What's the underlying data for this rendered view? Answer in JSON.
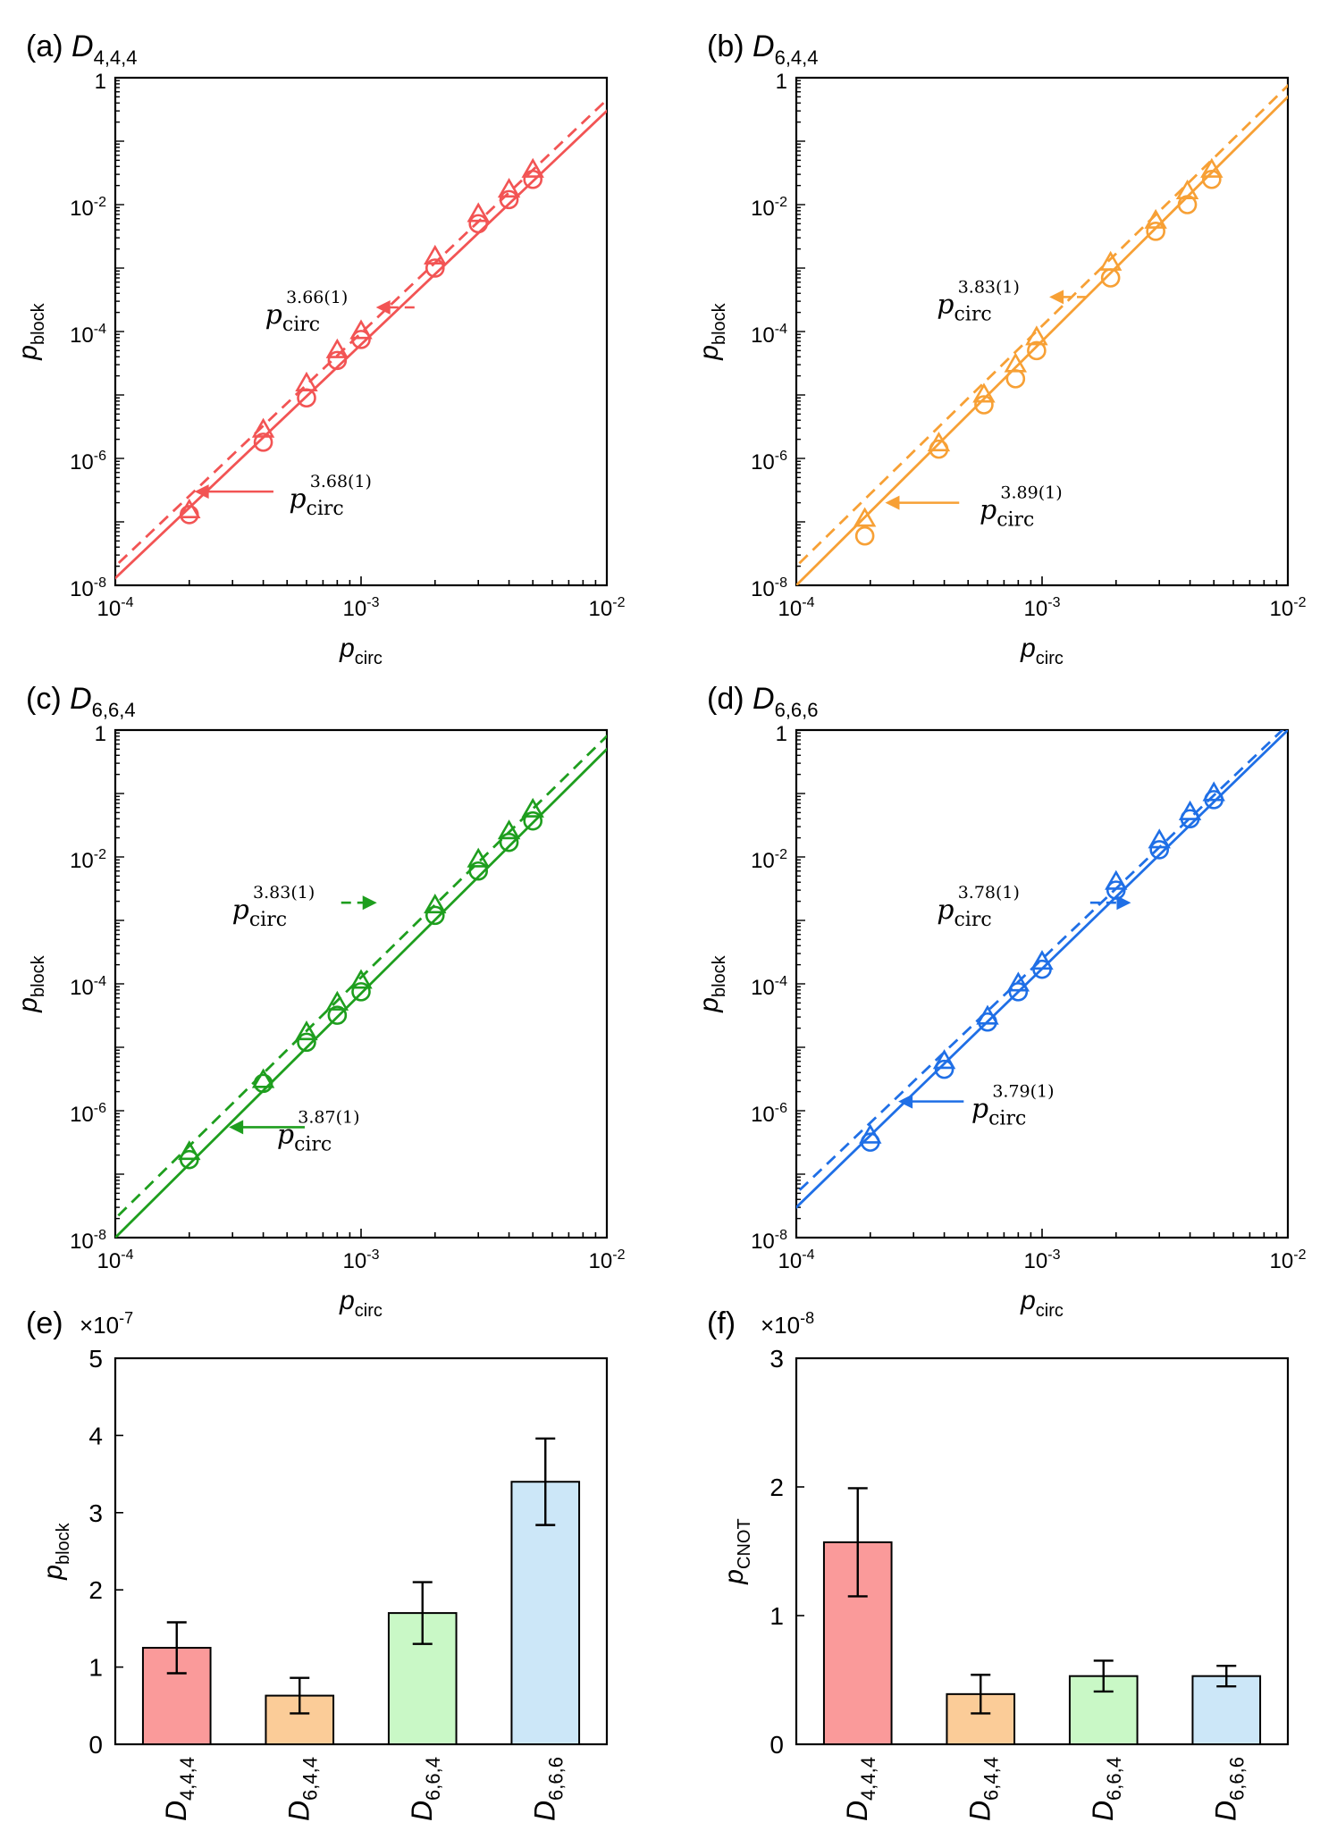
{
  "figure": "Block failure rates versus physical error rate for four code configurations",
  "chart_data": [
    {
      "id": "a",
      "panel_label": "(a)",
      "type": "scatter",
      "title_main": "D",
      "title_sub": "4,4,4",
      "color": "#f25454",
      "xlabel_main": "p",
      "xlabel_sub": "circ",
      "ylabel_main": "p",
      "ylabel_sub": "block",
      "xscale": "log",
      "yscale": "log",
      "xlim": [
        0.0001,
        0.01
      ],
      "ylim": [
        1e-08,
        1
      ],
      "xticks": [
        {
          "v": 0.0001,
          "base": "10",
          "exp": "-4"
        },
        {
          "v": 0.001,
          "base": "10",
          "exp": "-3"
        },
        {
          "v": 0.01,
          "base": "10",
          "exp": "-2"
        }
      ],
      "yticks": [
        {
          "v": 1e-08,
          "base": "10",
          "exp": "-8"
        },
        {
          "v": 1e-06,
          "base": "10",
          "exp": "-6"
        },
        {
          "v": 0.0001,
          "base": "10",
          "exp": "-4"
        },
        {
          "v": 0.01,
          "base": "10",
          "exp": "-2"
        },
        {
          "v": 1,
          "base": "1",
          "exp": ""
        }
      ],
      "series": [
        {
          "name": "circles",
          "marker": "circle",
          "fit": "solid",
          "x": [
            0.0002,
            0.0004,
            0.0006,
            0.0008,
            0.001,
            0.002,
            0.003,
            0.004,
            0.005
          ],
          "y": [
            1.3e-07,
            1.8e-06,
            9e-06,
            3.5e-05,
            7.5e-05,
            0.001,
            0.005,
            0.012,
            0.025
          ]
        },
        {
          "name": "triangles",
          "marker": "triangle",
          "fit": "dashed",
          "x": [
            0.0002,
            0.0004,
            0.0006,
            0.0008,
            0.001,
            0.002,
            0.003,
            0.004,
            0.005
          ],
          "y": [
            1.5e-07,
            2.8e-06,
            1.5e-05,
            5e-05,
            0.0001,
            0.0015,
            0.007,
            0.017,
            0.035
          ]
        }
      ],
      "fits": [
        {
          "style": "solid",
          "p1": [
            0.0001,
            1.3e-08
          ],
          "p2": [
            0.01,
            0.3
          ]
        },
        {
          "style": "dashed",
          "p1": [
            0.0001,
            2e-08
          ],
          "p2": [
            0.01,
            0.45
          ]
        }
      ],
      "annotations": [
        {
          "fit": "dashed",
          "exponent": "3.66(1)",
          "arrow_from": [
            0.00165,
            0.00024
          ],
          "arrow_to": [
            0.00115,
            0.00024
          ],
          "label_x": 0.0006,
          "label_y": 0.00024
        },
        {
          "fit": "solid",
          "exponent": "3.68(1)",
          "arrow_from": [
            0.00044,
            3e-07
          ],
          "arrow_to": [
            0.00021,
            3e-07
          ],
          "label_x": 0.00075,
          "label_y": 3e-07
        }
      ]
    },
    {
      "id": "b",
      "panel_label": "(b)",
      "type": "scatter",
      "title_main": "D",
      "title_sub": "6,4,4",
      "color": "#f7a035",
      "xlabel_main": "p",
      "xlabel_sub": "circ",
      "ylabel_main": "p",
      "ylabel_sub": "block",
      "xscale": "log",
      "yscale": "log",
      "xlim": [
        0.0001,
        0.01
      ],
      "ylim": [
        1e-08,
        1
      ],
      "xticks": [
        {
          "v": 0.0001,
          "base": "10",
          "exp": "-4"
        },
        {
          "v": 0.001,
          "base": "10",
          "exp": "-3"
        },
        {
          "v": 0.01,
          "base": "10",
          "exp": "-2"
        }
      ],
      "yticks": [
        {
          "v": 1e-08,
          "base": "10",
          "exp": "-8"
        },
        {
          "v": 1e-06,
          "base": "10",
          "exp": "-6"
        },
        {
          "v": 0.0001,
          "base": "10",
          "exp": "-4"
        },
        {
          "v": 0.01,
          "base": "10",
          "exp": "-2"
        },
        {
          "v": 1,
          "base": "1",
          "exp": ""
        }
      ],
      "series": [
        {
          "name": "circles",
          "marker": "circle",
          "fit": "solid",
          "x": [
            0.00019,
            0.00038,
            0.00058,
            0.00078,
            0.00095,
            0.0019,
            0.0029,
            0.0039,
            0.0049
          ],
          "y": [
            6e-08,
            1.4e-06,
            7e-06,
            1.8e-05,
            5e-05,
            0.0007,
            0.0038,
            0.01,
            0.025
          ]
        },
        {
          "name": "triangles",
          "marker": "triangle",
          "fit": "dashed",
          "x": [
            0.00019,
            0.00038,
            0.00058,
            0.00078,
            0.00095,
            0.0019,
            0.0029,
            0.0039,
            0.0049
          ],
          "y": [
            1.1e-07,
            1.7e-06,
            1e-05,
            3e-05,
            8e-05,
            0.0012,
            0.0055,
            0.016,
            0.035
          ]
        }
      ],
      "fits": [
        {
          "style": "solid",
          "p1": [
            0.0001,
            1e-08
          ],
          "p2": [
            0.01,
            0.5
          ]
        },
        {
          "style": "dashed",
          "p1": [
            0.0001,
            2e-08
          ],
          "p2": [
            0.01,
            0.75
          ]
        }
      ],
      "annotations": [
        {
          "fit": "dashed",
          "exponent": "3.83(1)",
          "arrow_from": [
            0.00152,
            0.00035
          ],
          "arrow_to": [
            0.00107,
            0.00035
          ],
          "label_x": 0.00055,
          "label_y": 0.00035
        },
        {
          "fit": "solid",
          "exponent": "3.89(1)",
          "arrow_from": [
            0.00046,
            2e-07
          ],
          "arrow_to": [
            0.00023,
            2e-07
          ],
          "label_x": 0.00082,
          "label_y": 2e-07
        }
      ]
    },
    {
      "id": "c",
      "panel_label": "(c)",
      "type": "scatter",
      "title_main": "D",
      "title_sub": "6,6,4",
      "color": "#1e9e1e",
      "xlabel_main": "p",
      "xlabel_sub": "circ",
      "ylabel_main": "p",
      "ylabel_sub": "block",
      "xscale": "log",
      "yscale": "log",
      "xlim": [
        0.0001,
        0.01
      ],
      "ylim": [
        1e-08,
        1
      ],
      "xticks": [
        {
          "v": 0.0001,
          "base": "10",
          "exp": "-4"
        },
        {
          "v": 0.001,
          "base": "10",
          "exp": "-3"
        },
        {
          "v": 0.01,
          "base": "10",
          "exp": "-2"
        }
      ],
      "yticks": [
        {
          "v": 1e-08,
          "base": "10",
          "exp": "-8"
        },
        {
          "v": 1e-06,
          "base": "10",
          "exp": "-6"
        },
        {
          "v": 0.0001,
          "base": "10",
          "exp": "-4"
        },
        {
          "v": 0.01,
          "base": "10",
          "exp": "-2"
        },
        {
          "v": 1,
          "base": "1",
          "exp": ""
        }
      ],
      "series": [
        {
          "name": "circles",
          "marker": "circle",
          "fit": "solid",
          "x": [
            0.0002,
            0.0004,
            0.0006,
            0.0008,
            0.001,
            0.002,
            0.003,
            0.004,
            0.005
          ],
          "y": [
            1.7e-07,
            2.7e-06,
            1.2e-05,
            3.2e-05,
            7.5e-05,
            0.0012,
            0.006,
            0.017,
            0.037
          ]
        },
        {
          "name": "triangles",
          "marker": "triangle",
          "fit": "dashed",
          "x": [
            0.0002,
            0.0004,
            0.0006,
            0.0008,
            0.001,
            0.002,
            0.003,
            0.004,
            0.005
          ],
          "y": [
            2.2e-07,
            3e-06,
            1.7e-05,
            5e-05,
            0.00011,
            0.0017,
            0.009,
            0.025,
            0.055
          ]
        }
      ],
      "fits": [
        {
          "style": "solid",
          "p1": [
            0.0001,
            1e-08
          ],
          "p2": [
            0.01,
            0.5
          ]
        },
        {
          "style": "dashed",
          "p1": [
            0.0001,
            2e-08
          ],
          "p2": [
            0.01,
            0.8
          ]
        }
      ],
      "annotations": [
        {
          "fit": "dashed",
          "exponent": "3.83(1)",
          "arrow_from": [
            0.00083,
            0.0019
          ],
          "arrow_to": [
            0.00116,
            0.0019
          ],
          "label_x": 0.00044,
          "label_y": 0.0019
        },
        {
          "fit": "solid",
          "exponent": "3.87(1)",
          "arrow_from": [
            0.00059,
            5.5e-07
          ],
          "arrow_to": [
            0.00029,
            5.5e-07
          ],
          "label_x": 0.00067,
          "label_y": 5.5e-07
        }
      ]
    },
    {
      "id": "d",
      "panel_label": "(d)",
      "type": "scatter",
      "title_main": "D",
      "title_sub": "6,6,6",
      "color": "#1f6fe6",
      "xlabel_main": "p",
      "xlabel_sub": "circ",
      "ylabel_main": "p",
      "ylabel_sub": "block",
      "xscale": "log",
      "yscale": "log",
      "xlim": [
        0.0001,
        0.01
      ],
      "ylim": [
        1e-08,
        1
      ],
      "xticks": [
        {
          "v": 0.0001,
          "base": "10",
          "exp": "-4"
        },
        {
          "v": 0.001,
          "base": "10",
          "exp": "-3"
        },
        {
          "v": 0.01,
          "base": "10",
          "exp": "-2"
        }
      ],
      "yticks": [
        {
          "v": 1e-08,
          "base": "10",
          "exp": "-8"
        },
        {
          "v": 1e-06,
          "base": "10",
          "exp": "-6"
        },
        {
          "v": 0.0001,
          "base": "10",
          "exp": "-4"
        },
        {
          "v": 0.01,
          "base": "10",
          "exp": "-2"
        },
        {
          "v": 1,
          "base": "1",
          "exp": ""
        }
      ],
      "series": [
        {
          "name": "circles",
          "marker": "circle",
          "fit": "solid",
          "x": [
            0.0002,
            0.0004,
            0.0006,
            0.0008,
            0.001,
            0.002,
            0.003,
            0.004,
            0.005
          ],
          "y": [
            3.2e-07,
            4.5e-06,
            2.5e-05,
            7.5e-05,
            0.00017,
            0.003,
            0.013,
            0.04,
            0.08
          ]
        },
        {
          "name": "triangles",
          "marker": "triangle",
          "fit": "dashed",
          "x": [
            0.0002,
            0.0004,
            0.0006,
            0.0008,
            0.001,
            0.002,
            0.003,
            0.004,
            0.005
          ],
          "y": [
            4e-07,
            6e-06,
            3e-05,
            0.0001,
            0.00022,
            0.004,
            0.018,
            0.05,
            0.1
          ]
        }
      ],
      "fits": [
        {
          "style": "solid",
          "p1": [
            0.0001,
            3e-08
          ],
          "p2": [
            0.01,
            1
          ]
        },
        {
          "style": "dashed",
          "p1": [
            0.0001,
            5e-08
          ],
          "p2": [
            0.0095,
            1
          ]
        }
      ],
      "annotations": [
        {
          "fit": "dashed",
          "exponent": "3.78(1)",
          "arrow_from": [
            0.00157,
            0.0019
          ],
          "arrow_to": [
            0.0023,
            0.0019
          ],
          "label_x": 0.00055,
          "label_y": 0.0019
        },
        {
          "fit": "solid",
          "exponent": "3.79(1)",
          "arrow_from": [
            0.00048,
            1.4e-06
          ],
          "arrow_to": [
            0.00026,
            1.4e-06
          ],
          "label_x": 0.00076,
          "label_y": 1.4e-06
        }
      ]
    },
    {
      "id": "e",
      "panel_label": "(e)",
      "type": "bar",
      "multiplier_base": "×10",
      "multiplier_exp": "-7",
      "ylabel_main": "p",
      "ylabel_sub": "block",
      "ylim": [
        0,
        5
      ],
      "yticks": [
        0,
        1,
        2,
        3,
        4,
        5
      ],
      "categories": [
        {
          "main": "D",
          "sub": "4,4,4"
        },
        {
          "main": "D",
          "sub": "6,4,4"
        },
        {
          "main": "D",
          "sub": "6,6,4"
        },
        {
          "main": "D",
          "sub": "6,6,6"
        }
      ],
      "values": [
        1.25,
        0.63,
        1.7,
        3.4
      ],
      "errors": [
        0.33,
        0.23,
        0.4,
        0.56
      ],
      "colors": [
        "#fa9a9a",
        "#fbcc98",
        "#c9f8c6",
        "#cce7f8"
      ]
    },
    {
      "id": "f",
      "panel_label": "(f)",
      "type": "bar",
      "multiplier_base": "×10",
      "multiplier_exp": "-8",
      "ylabel_main": "p",
      "ylabel_sub": "CNOT",
      "ylim": [
        0,
        3
      ],
      "yticks": [
        0,
        1,
        2,
        3
      ],
      "categories": [
        {
          "main": "D",
          "sub": "4,4,4"
        },
        {
          "main": "D",
          "sub": "6,4,4"
        },
        {
          "main": "D",
          "sub": "6,6,4"
        },
        {
          "main": "D",
          "sub": "6,6,6"
        }
      ],
      "values": [
        1.57,
        0.39,
        0.53,
        0.53
      ],
      "errors": [
        0.42,
        0.15,
        0.12,
        0.08
      ],
      "colors": [
        "#fa9a9a",
        "#fbcc98",
        "#c9f8c6",
        "#cce7f8"
      ]
    }
  ]
}
